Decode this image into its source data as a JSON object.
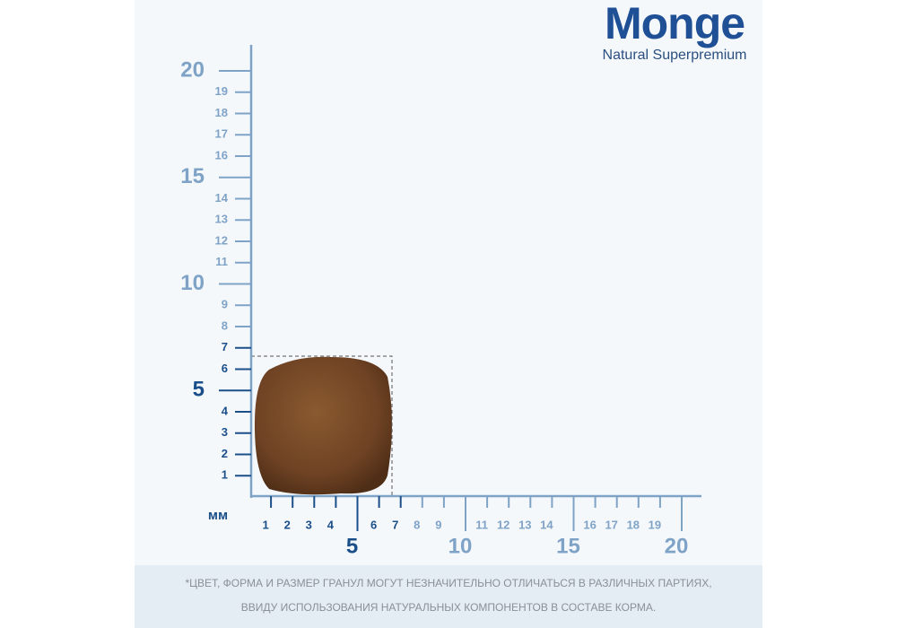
{
  "logo": {
    "brand": "Monge",
    "tagline": "Natural Superpremium"
  },
  "ruler": {
    "unit": "мм",
    "y_minor": [
      1,
      2,
      3,
      4,
      6,
      7,
      8,
      9,
      11,
      12,
      13,
      14,
      16,
      17,
      18,
      19
    ],
    "y_major": [
      5,
      10,
      15,
      20
    ],
    "x_minor": [
      1,
      2,
      3,
      4,
      6,
      7,
      8,
      9,
      11,
      12,
      13,
      14,
      16,
      17,
      18,
      19
    ],
    "x_major": [
      5,
      10,
      15,
      20
    ]
  },
  "disclaimer": {
    "lines": [
      "*ЦВЕТ, ФОРМА И РАЗМЕР ГРАНУЛ МОГУТ НЕЗНАЧИТЕЛЬНО ОТЛИЧАТЬСЯ В РАЗЛИЧНЫХ ПАРТИЯХ,",
      "ВВИДУ ИСПОЛЬЗОВАНИЯ НАТУРАЛЬНЫХ КОМПОНЕНТОВ В СОСТАВЕ КОРМА."
    ]
  }
}
